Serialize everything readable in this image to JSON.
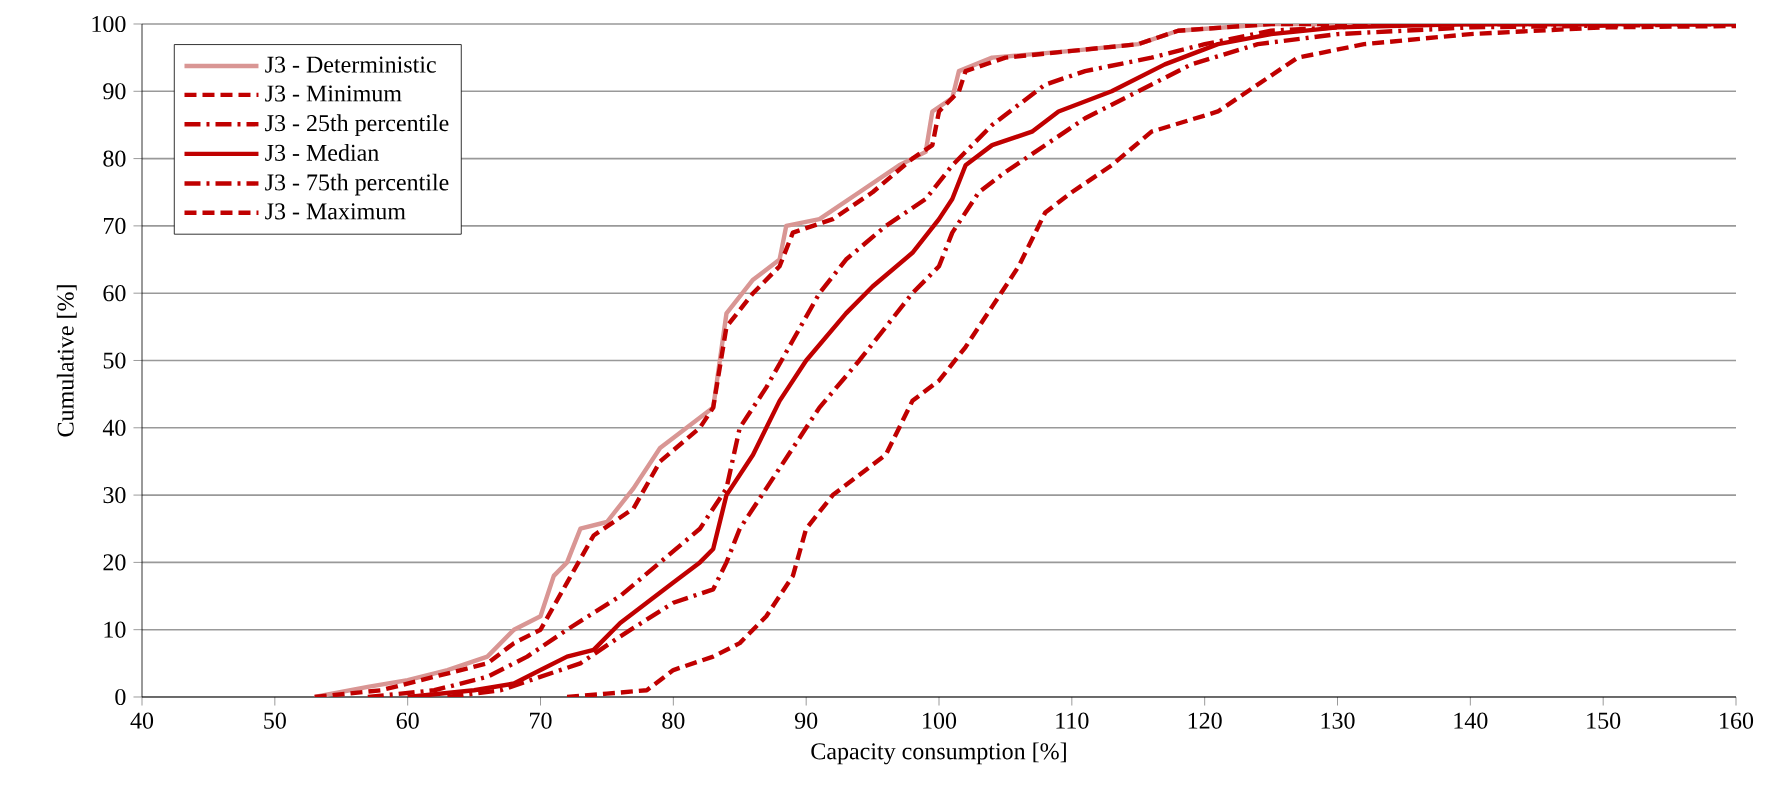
{
  "chart_data": {
    "type": "line",
    "xlabel": "Capacity consumption [%]",
    "ylabel": "Cumulative [%]",
    "xlim": [
      40,
      160
    ],
    "xticks": [
      40,
      50,
      60,
      70,
      80,
      90,
      100,
      110,
      120,
      130,
      140,
      150,
      160
    ],
    "ylim": [
      0,
      100
    ],
    "yticks": [
      0,
      10,
      20,
      30,
      40,
      50,
      60,
      70,
      80,
      90,
      100
    ],
    "grid": "y",
    "legend": "top left",
    "marker": "none",
    "series": [
      {
        "name": "J3 - Deterministic",
        "color": "#d99694",
        "line_style": "solid",
        "x": [
          53,
          57,
          60,
          63,
          66,
          68,
          70,
          71,
          72,
          73,
          75,
          77,
          79,
          81,
          83,
          83.5,
          84,
          86,
          88,
          88.5,
          91,
          94,
          97,
          99,
          99.5,
          101,
          101.5,
          104,
          110,
          115,
          118,
          125,
          160
        ],
        "values": [
          0,
          1.5,
          2.5,
          4,
          6,
          10,
          12,
          18,
          20,
          25,
          26,
          31,
          37,
          40,
          43,
          50,
          57,
          62,
          65,
          70,
          71,
          75,
          79,
          81,
          87,
          89,
          93,
          95,
          96,
          97,
          99,
          100,
          100
        ]
      },
      {
        "name": "J3 - Minimum",
        "color": "#c00000",
        "line_style": "dashed",
        "x": [
          53,
          58,
          62,
          66,
          68,
          70,
          72,
          74,
          77,
          79,
          82,
          83,
          84,
          86,
          88,
          89,
          92,
          95,
          98,
          99.5,
          100,
          101.5,
          102,
          105,
          110,
          115,
          118,
          125,
          160
        ],
        "values": [
          0,
          1,
          3,
          5,
          8,
          10,
          17,
          24,
          28,
          35,
          40,
          43,
          55,
          60,
          64,
          69,
          71,
          75,
          80,
          82,
          87,
          90,
          93,
          95,
          96,
          97,
          99,
          100,
          100
        ]
      },
      {
        "name": "J3 - 25th percentile",
        "color": "#c00000",
        "line_style": "dashdot",
        "x": [
          57,
          62,
          66,
          69,
          72,
          76,
          79,
          82,
          84,
          85,
          87,
          89,
          91,
          93,
          96,
          99,
          101,
          104,
          108,
          111,
          116,
          120,
          125,
          135,
          160
        ],
        "values": [
          0,
          1,
          3,
          6,
          10,
          15,
          20,
          25,
          31,
          40,
          46,
          53,
          60,
          65,
          70,
          74,
          79,
          85,
          91,
          93,
          95,
          97,
          99,
          100,
          100
        ]
      },
      {
        "name": "J3 - Median",
        "color": "#c00000",
        "line_style": "solid",
        "x": [
          60,
          65,
          68,
          70,
          72,
          74,
          76,
          78,
          80,
          82,
          83,
          84,
          86,
          88,
          90,
          93,
          95,
          98,
          100,
          101,
          102,
          104,
          107,
          109,
          113,
          117,
          121,
          125,
          130,
          140,
          160
        ],
        "values": [
          0,
          1,
          2,
          4,
          6,
          7,
          11,
          14,
          17,
          20,
          22,
          30,
          36,
          44,
          50,
          57,
          61,
          66,
          71,
          74,
          79,
          82,
          84,
          87,
          90,
          94,
          97,
          98.5,
          99.5,
          100,
          100
        ]
      },
      {
        "name": "J3 - 75th percentile",
        "color": "#c00000",
        "line_style": "dashdot",
        "x": [
          63,
          67,
          70,
          73,
          76,
          80,
          83,
          84,
          85,
          87,
          89,
          91,
          94,
          96,
          98,
          100,
          101,
          103,
          105,
          108,
          111,
          115,
          119,
          124,
          130,
          140,
          160
        ],
        "values": [
          0,
          1,
          3,
          5,
          9,
          14,
          16,
          20,
          25,
          31,
          37,
          43,
          50,
          55,
          60,
          64,
          69,
          75,
          78,
          82,
          86,
          90,
          94,
          97,
          98.5,
          99.5,
          100
        ]
      },
      {
        "name": "J3 - Maximum",
        "color": "#c00000",
        "line_style": "dashed",
        "x": [
          72,
          75,
          78,
          80,
          83,
          85,
          87,
          89,
          90,
          92,
          94,
          96,
          98,
          100,
          102,
          104,
          106,
          107,
          108,
          110,
          113,
          116,
          121,
          124,
          127,
          132,
          140,
          150,
          160
        ],
        "values": [
          0,
          0.5,
          1,
          4,
          6,
          8,
          12,
          18,
          25,
          30,
          33,
          36,
          44,
          47,
          52,
          58,
          64,
          68,
          72,
          75,
          79,
          84,
          87,
          91,
          95,
          97,
          98.5,
          99.5,
          99.7
        ]
      }
    ]
  }
}
